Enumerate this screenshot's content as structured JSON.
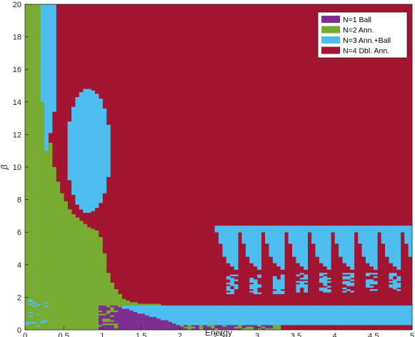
{
  "chart_data": {
    "type": "heatmap",
    "xlabel": "Energy",
    "ylabel": "β",
    "xlim": [
      0,
      5
    ],
    "ylim": [
      0,
      20
    ],
    "xticks": [
      "0",
      "0.5",
      "1",
      "1.5",
      "2",
      "2.5",
      "3",
      "3.5",
      "4",
      "4.5",
      "5"
    ],
    "yticks": [
      "0",
      "2",
      "4",
      "6",
      "8",
      "10",
      "12",
      "14",
      "16",
      "18",
      "20"
    ],
    "grid_resolution": {
      "energy_step": 0.05,
      "beta_step": 0.1
    },
    "legend_position": "top-right",
    "categories": [
      {
        "n": 1,
        "label": "N=1 Ball",
        "color": "#7E2F8E"
      },
      {
        "n": 2,
        "label": "N=2 Ann.",
        "color": "#77AC30"
      },
      {
        "n": 3,
        "label": "N=3 Ann.+Ball",
        "color": "#4DBEEE"
      },
      {
        "n": 4,
        "label": "N=4 Dbl. Ann.",
        "color": "#A2142F"
      }
    ],
    "regions": [
      {
        "n": 4,
        "label": "N=4 Dbl. Ann.",
        "description": "background everywhere not covered below"
      },
      {
        "n": 2,
        "label": "N=2 Ann.",
        "boundary_energy_vs_beta": [
          [
            0.0,
            20
          ],
          [
            0.2,
            20
          ],
          [
            0.25,
            15
          ],
          [
            0.3,
            12.5
          ],
          [
            0.35,
            10.5
          ],
          [
            0.45,
            8.6
          ],
          [
            0.6,
            7.2
          ],
          [
            0.8,
            6.4
          ],
          [
            0.95,
            6.0
          ],
          [
            1.0,
            5.5
          ],
          [
            1.05,
            4.0
          ],
          [
            1.1,
            3.0
          ],
          [
            1.2,
            2.4
          ],
          [
            1.3,
            1.8
          ],
          [
            1.5,
            1.6
          ],
          [
            2.0,
            1.5
          ],
          [
            2.6,
            1.4
          ],
          [
            3.0,
            1.3
          ],
          [
            3.3,
            1.2
          ],
          [
            3.3,
            0
          ]
        ]
      },
      {
        "n": 3,
        "label": "N=3 Ann.+Ball",
        "description": "narrow vertical strip",
        "energy_range": [
          0.2,
          0.4
        ],
        "beta_range": [
          14,
          20
        ]
      },
      {
        "n": 3,
        "label": "N=3 Ann.+Ball",
        "description": "tall island",
        "center_energy": 0.82,
        "beta_range": [
          7.2,
          14.8
        ]
      },
      {
        "n": 3,
        "label": "N=3 Ann.+Ball",
        "description": "horizontal band",
        "energy_range": [
          1.3,
          5.0
        ],
        "beta_range": [
          0.3,
          1.5
        ]
      },
      {
        "n": 3,
        "label": "N=3 Ann.+Ball",
        "description": "sawtooth region",
        "energy_range": [
          2.45,
          5.0
        ],
        "beta_range": [
          2.2,
          6.5
        ]
      },
      {
        "n": 1,
        "label": "N=1 Ball",
        "description": "thin wedge near the Energy axis",
        "energy_range": [
          0.95,
          2.0
        ],
        "beta_range": [
          0,
          1.8
        ]
      },
      {
        "n": 1,
        "label": "N=1 Ball",
        "description": "thin streak",
        "energy_range": [
          2.0,
          3.2
        ],
        "beta_range": [
          0,
          0.35
        ]
      }
    ]
  }
}
